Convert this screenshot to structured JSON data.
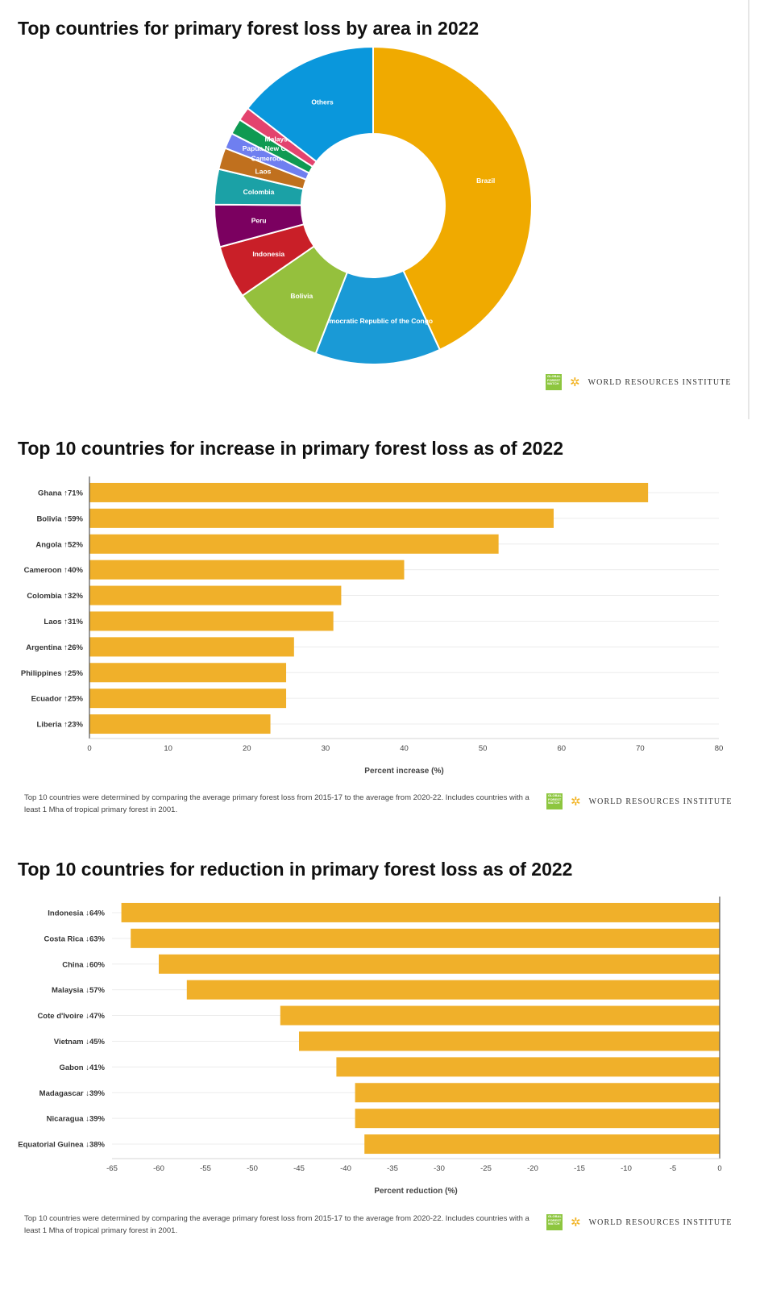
{
  "attribution": {
    "gfw_logo_text": "GLOBAL FOREST WATCH",
    "wri_text": "WORLD RESOURCES INSTITUTE"
  },
  "note_text": "Top 10 countries were determined by comparing the average primary forest loss from 2015-17 to the average from 2020-22. Includes countries with a least 1 Mha of tropical primary forest in 2001.",
  "chart_data": [
    {
      "type": "pie",
      "title": "Top countries for primary forest loss by area in 2022",
      "donut": true,
      "categories": [
        "Brazil",
        "Democratic Republic of the Congo",
        "Bolivia",
        "Indonesia",
        "Peru",
        "Colombia",
        "Laos",
        "Cameroon",
        "Papua New Guinea",
        "Malaysia",
        "Others"
      ],
      "values": [
        43.1,
        12.8,
        9.5,
        5.4,
        4.3,
        3.6,
        2.2,
        1.6,
        1.6,
        1.4,
        14.5
      ],
      "colors": [
        "#f0aa00",
        "#1a9ad6",
        "#95c03d",
        "#c91f28",
        "#7b0060",
        "#1ba1a6",
        "#c0701e",
        "#6f7ff0",
        "#0f9a52",
        "#e3436e",
        "#0a97dc"
      ]
    },
    {
      "type": "bar",
      "orientation": "horizontal",
      "title": "Top 10 countries for increase in primary forest loss as of 2022",
      "categories": [
        "Ghana",
        "Bolivia",
        "Angola",
        "Cameroon",
        "Colombia",
        "Laos",
        "Argentina",
        "Philippines",
        "Ecuador",
        "Liberia"
      ],
      "values": [
        71,
        59,
        52,
        40,
        32,
        31,
        26,
        25,
        25,
        23
      ],
      "labels": [
        "Ghana ↑71%",
        "Bolivia ↑59%",
        "Angola ↑52%",
        "Cameroon ↑40%",
        "Colombia ↑32%",
        "Laos ↑31%",
        "Argentina ↑26%",
        "Philippines ↑25%",
        "Ecuador ↑25%",
        "Liberia ↑23%"
      ],
      "xlabel": "Percent increase (%)",
      "xlim": [
        0,
        80
      ],
      "ticks": [
        0,
        10,
        20,
        30,
        40,
        50,
        60,
        70,
        80
      ],
      "grid": true,
      "color": "#f0b02a"
    },
    {
      "type": "bar",
      "orientation": "horizontal",
      "title": "Top 10 countries for reduction in primary forest loss as of 2022",
      "categories": [
        "Indonesia",
        "Costa Rica",
        "China",
        "Malaysia",
        "Cote d'Ivoire",
        "Vietnam",
        "Gabon",
        "Madagascar",
        "Nicaragua",
        "Equatorial Guinea"
      ],
      "values": [
        -64,
        -63,
        -60,
        -57,
        -47,
        -45,
        -41,
        -39,
        -39,
        -38
      ],
      "labels": [
        "Indonesia ↓64%",
        "Costa Rica ↓63%",
        "China ↓60%",
        "Malaysia ↓57%",
        "Cote d'Ivoire ↓47%",
        "Vietnam ↓45%",
        "Gabon ↓41%",
        "Madagascar ↓39%",
        "Nicaragua ↓39%",
        "Equatorial Guinea ↓38%"
      ],
      "xlabel": "Percent reduction (%)",
      "xlim": [
        -65,
        0
      ],
      "ticks": [
        -65,
        -60,
        -55,
        -50,
        -45,
        -40,
        -35,
        -30,
        -25,
        -20,
        -15,
        -10,
        -5,
        0
      ],
      "grid": true,
      "color": "#f0b02a"
    }
  ]
}
